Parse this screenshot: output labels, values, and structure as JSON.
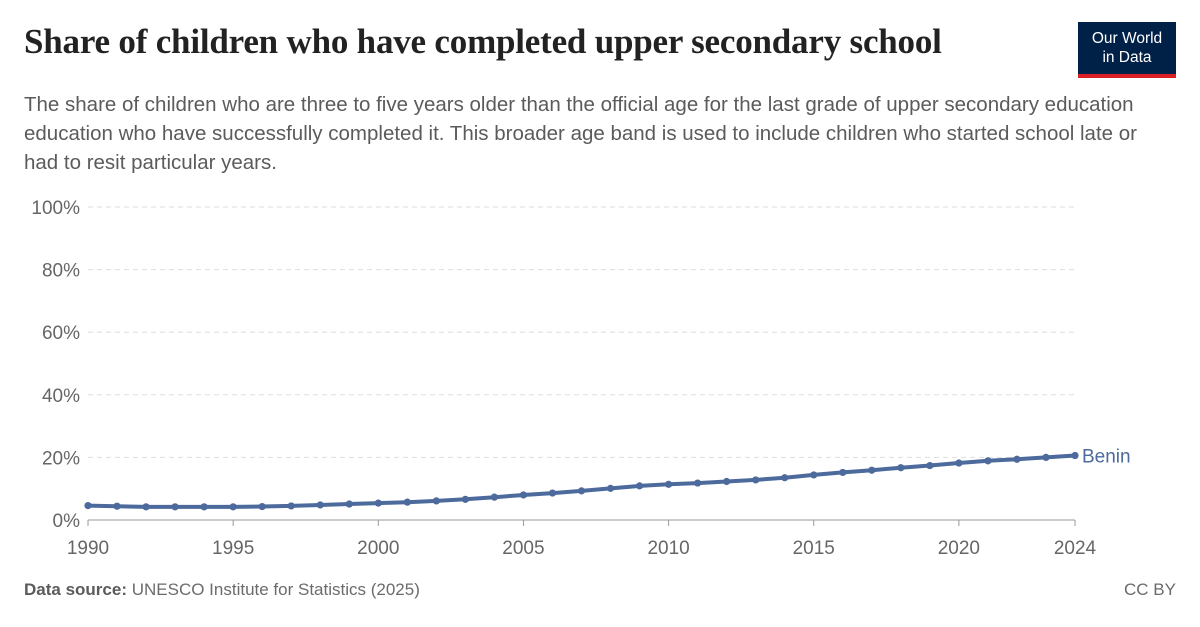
{
  "title": "Share of children who have completed upper secondary school",
  "subtitle": "The share of children who are three to five years older than the official age for the last grade of upper secondary education education who have successfully completed it. This broader age band is used to include children who started school late or had to resit particular years.",
  "logo": {
    "line1": "Our World",
    "line2": "in Data"
  },
  "footer": {
    "source_label": "Data source:",
    "source_text": "UNESCO Institute for Statistics (2025)",
    "license": "CC BY"
  },
  "colors": {
    "series": "#4c6a9c",
    "grid": "#dddddd",
    "axis_text": "#666666",
    "logo_bg": "#002147",
    "logo_accent": "#dc1f26"
  },
  "chart_data": {
    "type": "line",
    "ylim": [
      0,
      100
    ],
    "xlim": [
      1990,
      2024
    ],
    "y_ticks": [
      "0%",
      "20%",
      "40%",
      "60%",
      "80%",
      "100%"
    ],
    "y_tick_values": [
      0,
      20,
      40,
      60,
      80,
      100
    ],
    "x_ticks": [
      "1990",
      "1995",
      "2000",
      "2005",
      "2010",
      "2015",
      "2020",
      "2024"
    ],
    "x_tick_values": [
      1990,
      1995,
      2000,
      2005,
      2010,
      2015,
      2020,
      2024
    ],
    "grid": true,
    "series": [
      {
        "name": "Benin",
        "x": [
          1990,
          1991,
          1992,
          1993,
          1994,
          1995,
          1996,
          1997,
          1998,
          1999,
          2000,
          2001,
          2002,
          2003,
          2004,
          2005,
          2006,
          2007,
          2008,
          2009,
          2010,
          2011,
          2012,
          2013,
          2014,
          2015,
          2016,
          2017,
          2018,
          2019,
          2020,
          2021,
          2022,
          2023,
          2024
        ],
        "values": [
          4.6,
          4.4,
          4.2,
          4.2,
          4.2,
          4.2,
          4.3,
          4.5,
          4.8,
          5.1,
          5.4,
          5.7,
          6.1,
          6.6,
          7.3,
          8.0,
          8.6,
          9.3,
          10.1,
          10.9,
          11.4,
          11.8,
          12.3,
          12.8,
          13.5,
          14.4,
          15.2,
          15.9,
          16.7,
          17.4,
          18.2,
          18.9,
          19.4,
          20.0,
          20.6
        ]
      }
    ]
  }
}
